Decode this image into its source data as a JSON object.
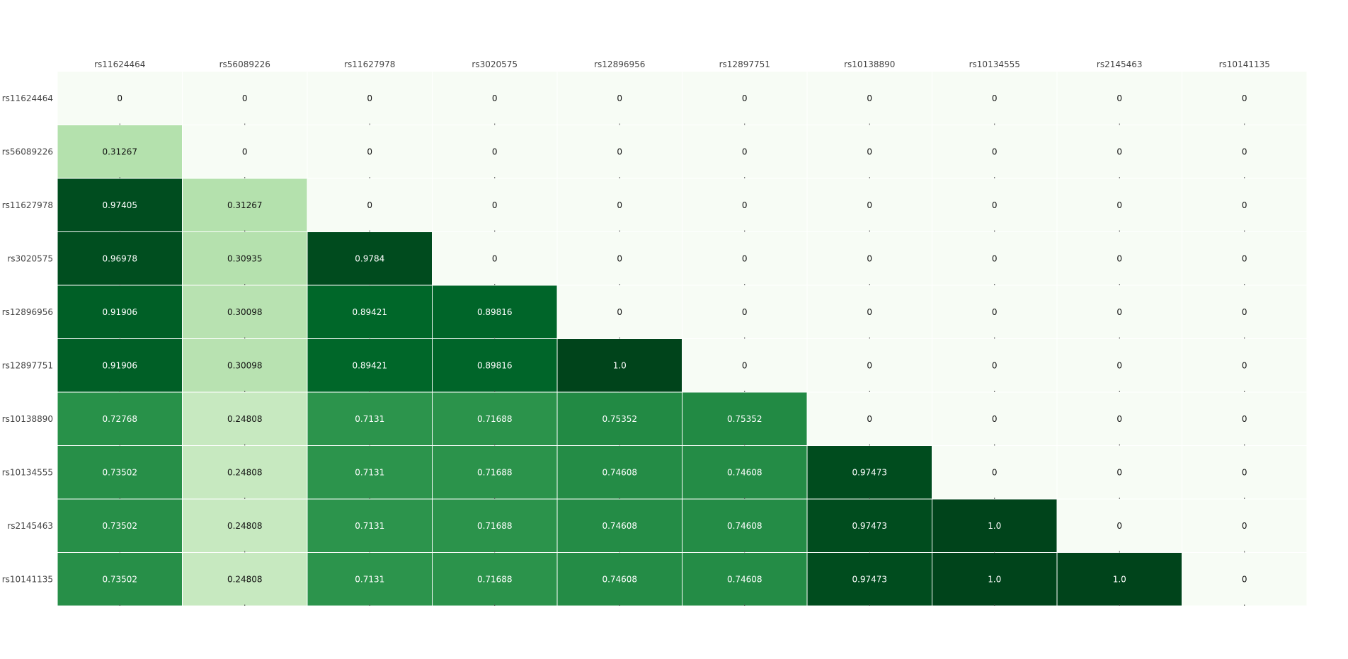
{
  "chart_data": {
    "type": "heatmap",
    "title": "",
    "xlabel": "",
    "ylabel": "",
    "x_categories": [
      "rs11624464",
      "rs56089226",
      "rs11627978",
      "rs3020575",
      "rs12896956",
      "rs12897751",
      "rs10138890",
      "rs10134555",
      "rs2145463",
      "rs10141135"
    ],
    "y_categories": [
      "rs11624464",
      "rs56089226",
      "rs11627978",
      "rs3020575",
      "rs12896956",
      "rs12897751",
      "rs10138890",
      "rs10134555",
      "rs2145463",
      "rs10141135"
    ],
    "values": [
      [
        0,
        0,
        0,
        0,
        0,
        0,
        0,
        0,
        0,
        0
      ],
      [
        0.31267,
        0,
        0,
        0,
        0,
        0,
        0,
        0,
        0,
        0
      ],
      [
        0.97405,
        0.31267,
        0,
        0,
        0,
        0,
        0,
        0,
        0,
        0
      ],
      [
        0.96978,
        0.30935,
        0.9784,
        0,
        0,
        0,
        0,
        0,
        0,
        0
      ],
      [
        0.91906,
        0.30098,
        0.89421,
        0.89816,
        0,
        0,
        0,
        0,
        0,
        0
      ],
      [
        0.91906,
        0.30098,
        0.89421,
        0.89816,
        1.0,
        0,
        0,
        0,
        0,
        0
      ],
      [
        0.72768,
        0.24808,
        0.7131,
        0.71688,
        0.75352,
        0.75352,
        0,
        0,
        0,
        0
      ],
      [
        0.73502,
        0.24808,
        0.7131,
        0.71688,
        0.74608,
        0.74608,
        0.97473,
        0,
        0,
        0
      ],
      [
        0.73502,
        0.24808,
        0.7131,
        0.71688,
        0.74608,
        0.74608,
        0.97473,
        1.0,
        0,
        0
      ],
      [
        0.73502,
        0.24808,
        0.7131,
        0.71688,
        0.74608,
        0.74608,
        0.97473,
        1.0,
        1.0,
        0
      ]
    ],
    "cell_labels": [
      [
        "0",
        "0",
        "0",
        "0",
        "0",
        "0",
        "0",
        "0",
        "0",
        "0"
      ],
      [
        "0.31267",
        "0",
        "0",
        "0",
        "0",
        "0",
        "0",
        "0",
        "0",
        "0"
      ],
      [
        "0.97405",
        "0.31267",
        "0",
        "0",
        "0",
        "0",
        "0",
        "0",
        "0",
        "0"
      ],
      [
        "0.96978",
        "0.30935",
        "0.9784",
        "0",
        "0",
        "0",
        "0",
        "0",
        "0",
        "0"
      ],
      [
        "0.91906",
        "0.30098",
        "0.89421",
        "0.89816",
        "0",
        "0",
        "0",
        "0",
        "0",
        "0"
      ],
      [
        "0.91906",
        "0.30098",
        "0.89421",
        "0.89816",
        "1.0",
        "0",
        "0",
        "0",
        "0",
        "0"
      ],
      [
        "0.72768",
        "0.24808",
        "0.7131",
        "0.71688",
        "0.75352",
        "0.75352",
        "0",
        "0",
        "0",
        "0"
      ],
      [
        "0.73502",
        "0.24808",
        "0.7131",
        "0.71688",
        "0.74608",
        "0.74608",
        "0.97473",
        "0",
        "0",
        "0"
      ],
      [
        "0.73502",
        "0.24808",
        "0.7131",
        "0.71688",
        "0.74608",
        "0.74608",
        "0.97473",
        "1.0",
        "0",
        "0"
      ],
      [
        "0.73502",
        "0.24808",
        "0.7131",
        "0.71688",
        "0.74608",
        "0.74608",
        "0.97473",
        "1.0",
        "1.0",
        "0"
      ]
    ],
    "zlim": [
      0,
      1
    ],
    "colorscale": "Greens",
    "x_axis_position": "top",
    "grid": false,
    "show_colorbar": false,
    "colors": {
      "low": "#f7fcf5",
      "high": "#00441b",
      "text_dark": "#111111",
      "text_light": "#ffffff",
      "cell_border": "#ffffff",
      "axis_text": "#444444"
    }
  }
}
